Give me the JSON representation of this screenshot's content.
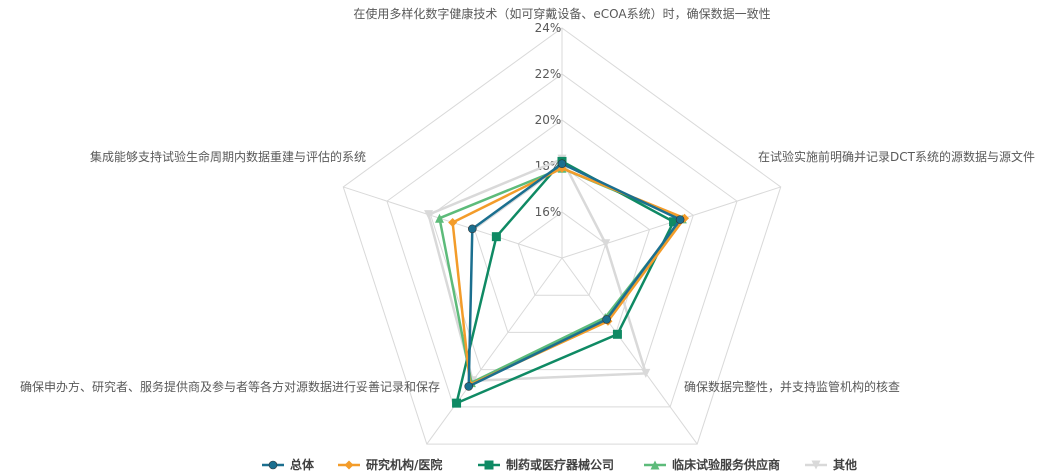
{
  "chart_data": {
    "type": "radar",
    "categories": [
      "在使用多样化数字健康技术（如可穿戴设备、eCOA系统）时，确保数据一致性",
      "在试验实施前明确并记录DCT系统的源数据与源文件",
      "确保数据完整性，并支持监管机构的核查",
      "确保申办方、研究者、服务提供商及参与者等各方对源数据进行妥善记录和保存",
      "集成能够支持试验生命周期内数据重建与评估的系统"
    ],
    "r_ticks": [
      "16%",
      "18%",
      "20%",
      "22%",
      "24%"
    ],
    "rlim": [
      14,
      24
    ],
    "grid": true,
    "legend_position": "bottom",
    "series": [
      {
        "name": "总体",
        "color": "#1b6f8f",
        "marker": "circle",
        "values": [
          18.1,
          19.4,
          17.3,
          20.9,
          18.1
        ]
      },
      {
        "name": "研究机构/医院",
        "color": "#f39c2a",
        "marker": "diamond",
        "values": [
          17.9,
          19.6,
          17.4,
          20.8,
          19.0
        ]
      },
      {
        "name": "制药或医疗器械公司",
        "color": "#0f8a64",
        "marker": "square",
        "values": [
          18.2,
          19.1,
          18.1,
          21.8,
          17.0
        ]
      },
      {
        "name": "临床试验服务供应商",
        "color": "#5dbb7a",
        "marker": "triangle",
        "values": [
          17.9,
          19.5,
          17.2,
          20.7,
          19.6
        ]
      },
      {
        "name": "其他",
        "color": "#d9d9d9",
        "marker": "triangle-down",
        "values": [
          18.3,
          16.0,
          20.2,
          20.6,
          20.1
        ]
      }
    ]
  }
}
